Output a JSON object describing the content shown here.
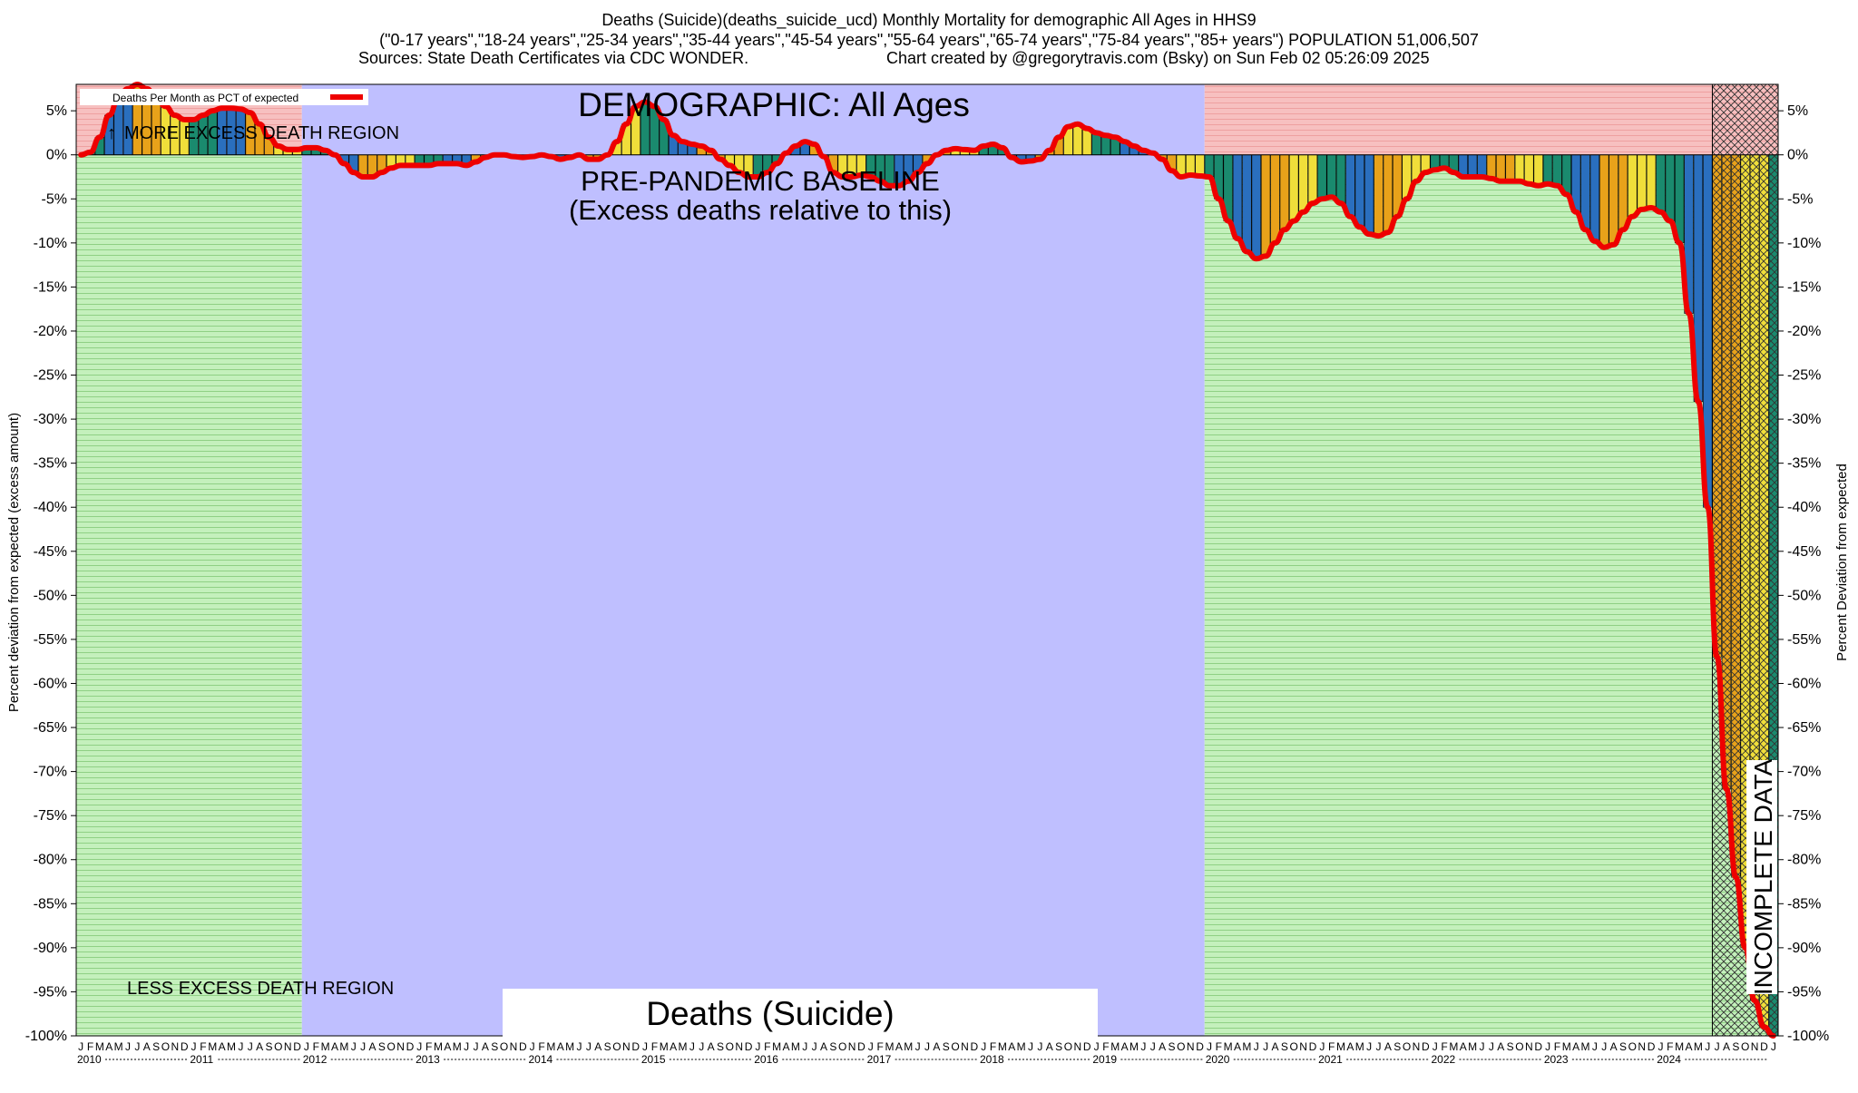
{
  "header": {
    "line1": "Deaths (Suicide)(deaths_suicide_ucd) Monthly Mortality for demographic All Ages in HHS9",
    "line2": "(\"0-17 years\",\"18-24 years\",\"25-34 years\",\"35-44 years\",\"45-54 years\",\"55-64 years\",\"65-74 years\",\"75-84 years\",\"85+ years\") POPULATION 51,006,507",
    "line3_left": "Sources: State Death Certificates via CDC WONDER.",
    "line3_right": "Chart created by @gregorytravis.com (Bsky) on Sun Feb 02 05:26:09 2025"
  },
  "annotations": {
    "demographic": "DEMOGRAPHIC: All Ages",
    "baseline_1": "PRE-PANDEMIC BASELINE",
    "baseline_2": "(Excess deaths relative to this)",
    "more_region": "MORE EXCESS DEATH REGION",
    "less_region": "LESS EXCESS DEATH REGION",
    "incomplete": "INCOMPLETE DATA",
    "cause_box": "Deaths (Suicide)",
    "up_arrow": "↑"
  },
  "colors": {
    "pink_region": "#f7c0c0",
    "green_region": "#c4f0bc",
    "baseline_region": "#bfbfff",
    "line": "#ee0000",
    "bar_palette": [
      "#1a8a6e",
      "#2a6fbe",
      "#e8a21a",
      "#f0de3a"
    ]
  },
  "chart_data": {
    "type": "bar",
    "title": "Deaths (Suicide)(deaths_suicide_ucd) Monthly Mortality for demographic All Ages in HHS9",
    "ylabel_left": "Percent deviation from expected (excess amount)",
    "ylabel_right": "Percent Deviation from expected",
    "legend": {
      "label": "Deaths Per Month as PCT of expected",
      "placement": "top-left"
    },
    "ylim": [
      -100,
      8
    ],
    "yticks": [
      5,
      0,
      -5,
      -10,
      -15,
      -20,
      -25,
      -30,
      -35,
      -40,
      -45,
      -50,
      -55,
      -60,
      -65,
      -70,
      -75,
      -80,
      -85,
      -90,
      -95,
      -100
    ],
    "ytick_labels": [
      "5%",
      "0%",
      "-5%",
      "-10%",
      "-15%",
      "-20%",
      "-25%",
      "-30%",
      "-35%",
      "-40%",
      "-45%",
      "-50%",
      "-55%",
      "-60%",
      "-65%",
      "-70%",
      "-75%",
      "-80%",
      "-85%",
      "-90%",
      "-95%",
      "-100%"
    ],
    "month_letters": [
      "J",
      "F",
      "M",
      "A",
      "M",
      "J",
      "J",
      "A",
      "S",
      "O",
      "N",
      "D"
    ],
    "years": [
      "2010",
      "2011",
      "2012",
      "2013",
      "2014",
      "2015",
      "2016",
      "2017",
      "2018",
      "2019",
      "2020",
      "2021",
      "2022",
      "2023",
      "2024"
    ],
    "start": "2010-01",
    "baseline_period": [
      "2012-01",
      "2019-12"
    ],
    "incomplete_from": "2024-07",
    "series": [
      {
        "name": "Deaths Per Month as PCT of expected",
        "values": [
          0,
          0.3,
          2,
          4.5,
          6.5,
          7.5,
          8,
          7.5,
          6.5,
          5.5,
          4.5,
          4,
          4,
          4.5,
          5,
          5.3,
          5.3,
          5.2,
          4.8,
          3.5,
          2,
          1,
          0.6,
          0.6,
          0.8,
          0.8,
          0.5,
          0,
          -1,
          -2,
          -2.5,
          -2.5,
          -2,
          -1.5,
          -1.2,
          -1.2,
          -1.2,
          -1.2,
          -1,
          -1,
          -1,
          -1.2,
          -0.8,
          -0.3,
          0,
          0,
          -0.2,
          -0.3,
          -0.2,
          0,
          -0.2,
          -0.5,
          -0.3,
          0,
          -0.5,
          -0.5,
          0,
          1.5,
          3.5,
          5.5,
          6,
          5.5,
          4,
          2.2,
          1.5,
          1.2,
          1,
          0.5,
          -0.5,
          -1.2,
          -2,
          -2.5,
          -2.5,
          -2,
          -1,
          0.2,
          1,
          1.5,
          1.2,
          -0.2,
          -2,
          -2.5,
          -2.5,
          -2.3,
          -2.5,
          -3,
          -3.5,
          -3.5,
          -3,
          -2,
          -1,
          0,
          0.5,
          0.7,
          0.6,
          0.5,
          1,
          1.2,
          0.8,
          -0.3,
          -0.8,
          -0.7,
          -0.5,
          0.5,
          2,
          3.2,
          3.5,
          3,
          2.5,
          2.2,
          2,
          1.5,
          1,
          0.5,
          0.2,
          -0.5,
          -1.8,
          -2.5,
          -2.3,
          -2.4,
          -2.5,
          -5,
          -7.5,
          -9.5,
          -11,
          -11.8,
          -11.5,
          -10,
          -8.5,
          -7.5,
          -6.5,
          -5.5,
          -5,
          -4.8,
          -5.5,
          -7,
          -8.2,
          -9,
          -9.2,
          -8.8,
          -7,
          -5,
          -3,
          -2,
          -1.7,
          -1.5,
          -2,
          -2.5,
          -2.5,
          -2.5,
          -2.7,
          -3,
          -3,
          -3,
          -3.3,
          -3.5,
          -3.3,
          -3.5,
          -4.5,
          -6.5,
          -8.5,
          -9.8,
          -10.5,
          -10.2,
          -8.5,
          -7,
          -6.2,
          -6,
          -6.5,
          -7.5,
          -10,
          -18,
          -28,
          -40,
          -57,
          -72,
          -82,
          -90,
          -96,
          -99,
          -100
        ]
      }
    ]
  }
}
